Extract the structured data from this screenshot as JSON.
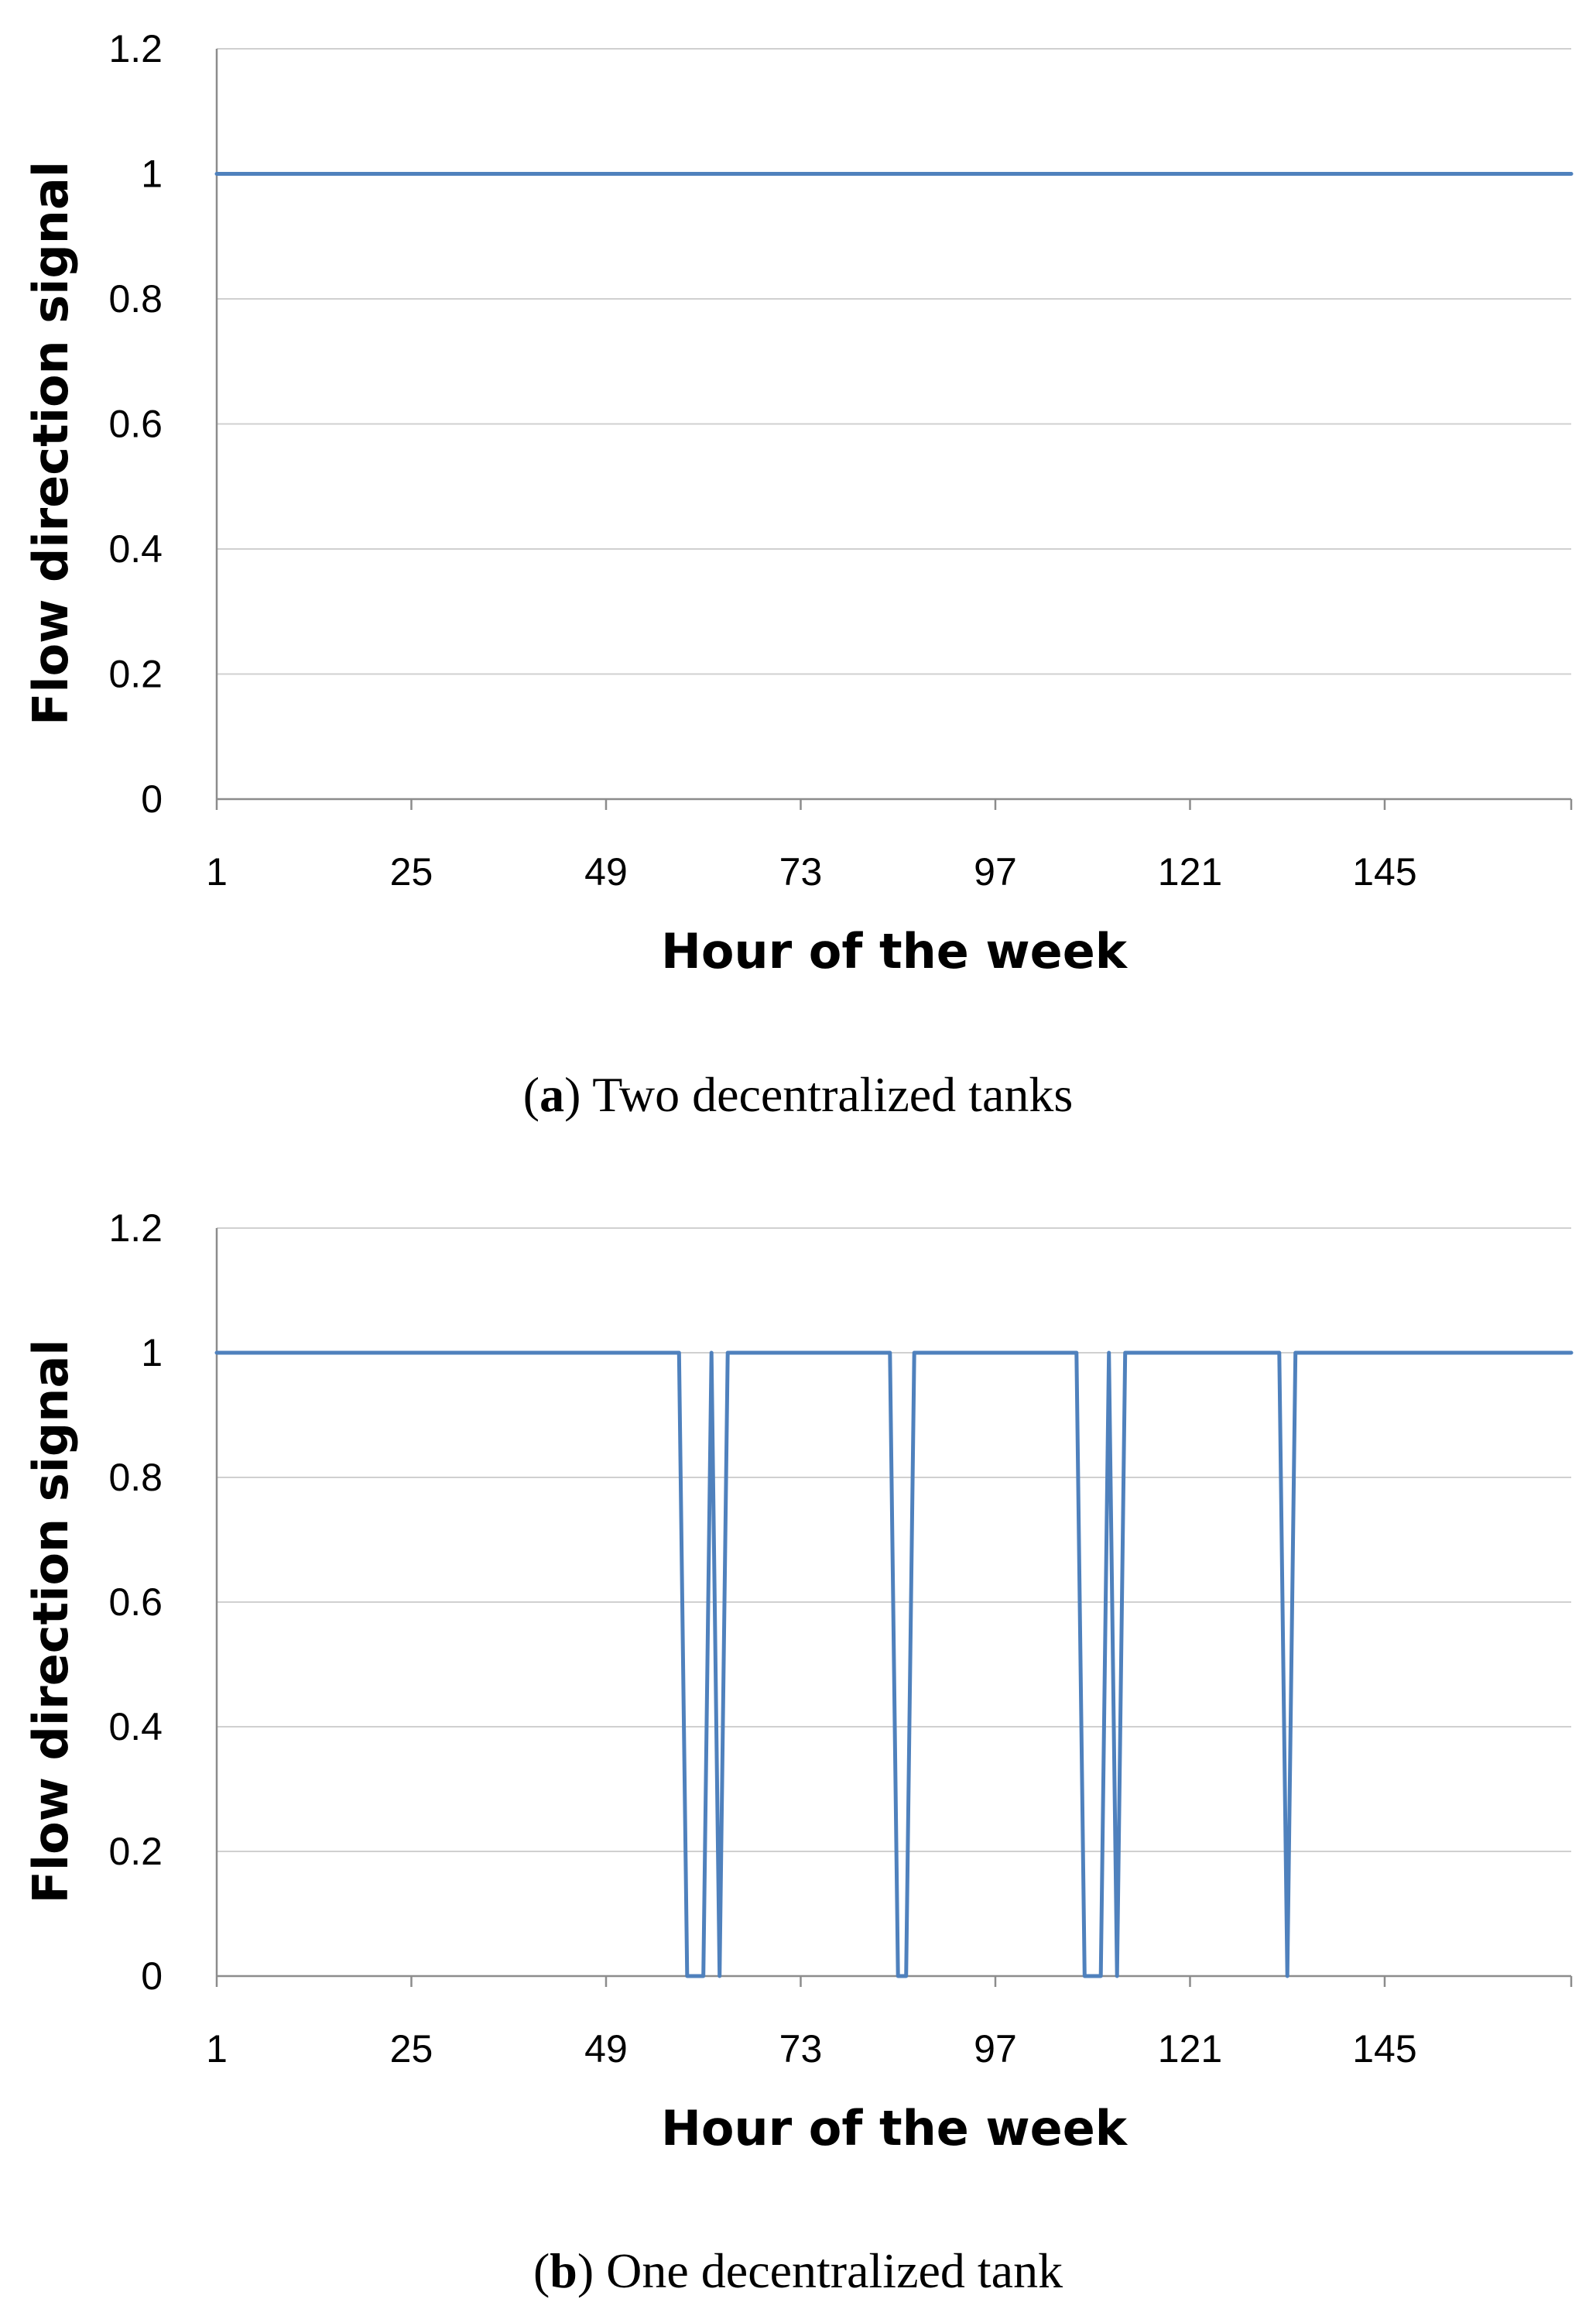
{
  "colors": {
    "series": "#4f81bd",
    "grid": "#d0d0d0",
    "axis": "#8c8c8c"
  },
  "chart_data": [
    {
      "type": "line",
      "title": "",
      "caption_letter": "a",
      "caption_text": "Two decentralized tanks",
      "xlabel": "Hour of the week",
      "ylabel": "Flow direction signal",
      "xlim": [
        1,
        168
      ],
      "ylim": [
        0,
        1.2
      ],
      "x_ticks": [
        1,
        25,
        49,
        73,
        97,
        121,
        145
      ],
      "y_ticks": [
        0,
        0.2,
        0.4,
        0.6,
        0.8,
        1,
        1.2
      ],
      "y_tick_labels": [
        "0",
        "0.2",
        "0.4",
        "0.6",
        "0.8",
        "1",
        "1.2"
      ],
      "grid": true,
      "series": [
        {
          "name": "Flow direction signal",
          "x": [
            1,
            168
          ],
          "y": [
            1,
            1
          ]
        }
      ]
    },
    {
      "type": "line",
      "title": "",
      "caption_letter": "b",
      "caption_text": "One decentralized tank",
      "xlabel": "Hour of the week",
      "ylabel": "Flow direction signal",
      "xlim": [
        1,
        168
      ],
      "ylim": [
        0,
        1.2
      ],
      "x_ticks": [
        1,
        25,
        49,
        73,
        97,
        121,
        145
      ],
      "y_ticks": [
        0,
        0.2,
        0.4,
        0.6,
        0.8,
        1,
        1.2
      ],
      "y_tick_labels": [
        "0",
        "0.2",
        "0.4",
        "0.6",
        "0.8",
        "1",
        "1.2"
      ],
      "grid": true,
      "series": [
        {
          "name": "Flow direction signal",
          "x": [
            1,
            58,
            59,
            61,
            62,
            63,
            64,
            84,
            85,
            86,
            87,
            107,
            108,
            110,
            111,
            112,
            113,
            132,
            133,
            134,
            168
          ],
          "y": [
            1,
            1,
            0,
            0,
            1,
            0,
            1,
            1,
            0,
            0,
            1,
            1,
            0,
            0,
            1,
            0,
            1,
            1,
            0,
            1,
            1
          ]
        }
      ]
    }
  ]
}
